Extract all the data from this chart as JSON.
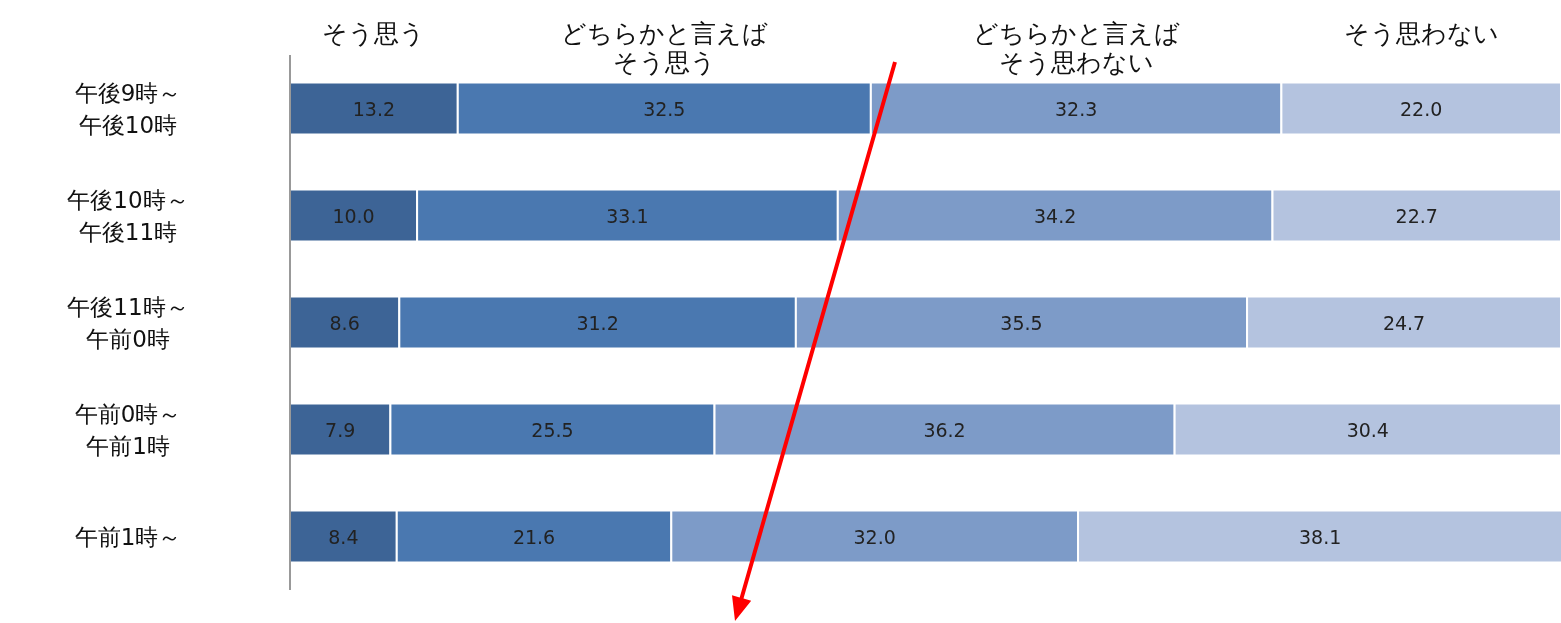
{
  "chart_data": {
    "type": "bar",
    "orientation": "horizontal",
    "stacked": true,
    "legend": "top",
    "xlim": [
      0,
      100
    ],
    "categories": [
      "午後9時～午後10時",
      "午後10時～午後11時",
      "午後11時～午前0時",
      "午前0時～午前1時",
      "午前1時～"
    ],
    "series": [
      {
        "name": "そう思う",
        "color": "#3d6496",
        "values": [
          13.2,
          10.0,
          8.6,
          7.9,
          8.4
        ],
        "value_labels": [
          "13.2",
          "10.0",
          "8.6",
          "7.9",
          "8.4"
        ]
      },
      {
        "name": "どちらかと言えばそう思う",
        "color": "#4a78b0",
        "values": [
          32.5,
          33.1,
          31.2,
          25.5,
          21.6
        ],
        "value_labels": [
          "32.5",
          "33.1",
          "31.2",
          "25.5",
          "21.6"
        ]
      },
      {
        "name": "どちらかと言えばそう思わない",
        "color": "#7d9bc8",
        "values": [
          32.3,
          34.2,
          35.5,
          36.2,
          32.0
        ],
        "value_labels": [
          "32.3",
          "34.2",
          "35.5",
          "36.2",
          "32.0"
        ]
      },
      {
        "name": "そう思わない",
        "color": "#b4c3df",
        "values": [
          22.0,
          22.7,
          24.7,
          30.4,
          38.1
        ],
        "value_labels": [
          "22.0",
          "22.7",
          "24.7",
          "30.4",
          "38.1"
        ]
      }
    ]
  }
}
